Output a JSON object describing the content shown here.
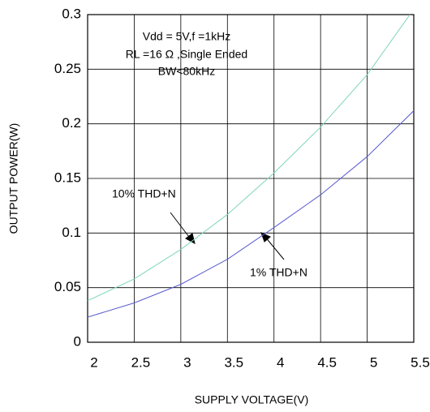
{
  "chart_data": {
    "type": "line",
    "xlabel": "SUPPLY VOLTAGE(V)",
    "ylabel": "OUTPUT POWER(W)",
    "annotations": [
      "Vdd = 5V,f =1kHz",
      "RL =16 Ω ,Single Ended",
      "BW<80kHz",
      "10% THD+N",
      "1% THD+N"
    ],
    "x": [
      2,
      2.5,
      3,
      3.5,
      4,
      4.5,
      5,
      5.5
    ],
    "series": [
      {
        "name": "10% THD+N",
        "color": "#7fd6b8",
        "values": [
          0.038,
          0.058,
          0.085,
          0.117,
          0.155,
          0.197,
          0.245,
          0.305
        ]
      },
      {
        "name": "1% THD+N",
        "color": "#5a5ad0",
        "values": [
          0.023,
          0.036,
          0.053,
          0.076,
          0.105,
          0.135,
          0.17,
          0.212
        ]
      }
    ],
    "xlim": [
      2,
      5.5
    ],
    "xticks": [
      2,
      2.5,
      3,
      3.5,
      4,
      4.5,
      5,
      5.5
    ],
    "ylim": [
      0,
      0.3
    ],
    "yticks": [
      0,
      0.05,
      0.1,
      0.15,
      0.2,
      0.25,
      0.3
    ],
    "grid": true
  }
}
